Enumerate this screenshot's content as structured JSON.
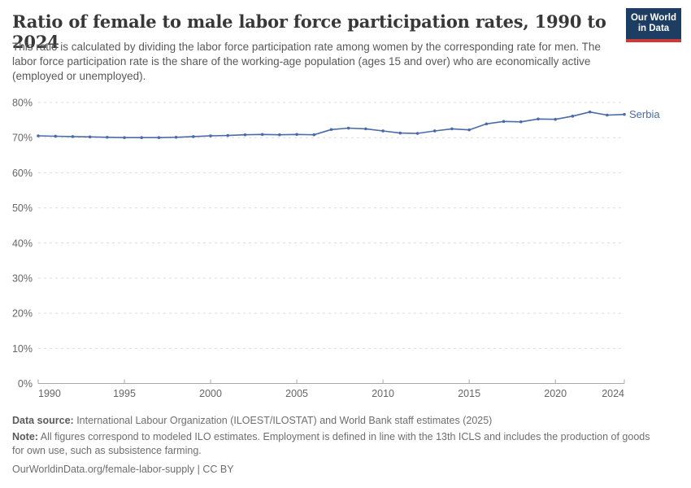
{
  "header": {
    "title": "Ratio of female to male labor force participation rates, 1990 to 2024",
    "subtitle": "This ratio is calculated by dividing the labor force participation rate among women by the corresponding rate for men. The labor force participation rate is the share of the working-age population (ages 15 and over) who are economically active (employed or unemployed).",
    "logo": {
      "line1": "Our World",
      "line2": "in Data"
    }
  },
  "chart_data": {
    "type": "line",
    "title": "Ratio of female to male labor force participation rates",
    "xlabel": "",
    "ylabel": "",
    "x": [
      1990,
      1991,
      1992,
      1993,
      1994,
      1995,
      1996,
      1997,
      1998,
      1999,
      2000,
      2001,
      2002,
      2003,
      2004,
      2005,
      2006,
      2007,
      2008,
      2009,
      2010,
      2011,
      2012,
      2013,
      2014,
      2015,
      2016,
      2017,
      2018,
      2019,
      2020,
      2021,
      2022,
      2023,
      2024
    ],
    "series": [
      {
        "name": "Serbia",
        "color": "#4a6ba8",
        "values": [
          70.5,
          70.4,
          70.3,
          70.2,
          70.1,
          70.0,
          70.0,
          70.0,
          70.1,
          70.3,
          70.5,
          70.6,
          70.8,
          70.9,
          70.8,
          70.9,
          70.8,
          72.3,
          72.7,
          72.5,
          71.9,
          71.3,
          71.2,
          71.9,
          72.5,
          72.2,
          73.9,
          74.6,
          74.5,
          75.3,
          75.2,
          76.1,
          77.3,
          76.4,
          76.6
        ]
      }
    ],
    "ylim": [
      0,
      80
    ],
    "yticks": [
      0,
      10,
      20,
      30,
      40,
      50,
      60,
      70,
      80
    ],
    "ytick_suffix": "%",
    "xticks": [
      1990,
      1995,
      2000,
      2005,
      2010,
      2015,
      2020,
      2024
    ],
    "grid": "horizontal-dashed",
    "legend_position": "end-of-line-label",
    "end_label": "Serbia",
    "axis_color": "#a8a8a8",
    "grid_color": "#dcdcdc",
    "tick_label_color": "#666666"
  },
  "footer": {
    "data_source_label": "Data source:",
    "data_source": " International Labour Organization (ILOEST/ILOSTAT) and World Bank staff estimates (2025)",
    "note_label": "Note:",
    "note": " All figures correspond to modeled ILO estimates. Employment is defined in line with the 13th ICLS and includes the production of goods for own use, such as subsistence farming.",
    "citation": "OurWorldinData.org/female-labor-supply | CC BY"
  }
}
